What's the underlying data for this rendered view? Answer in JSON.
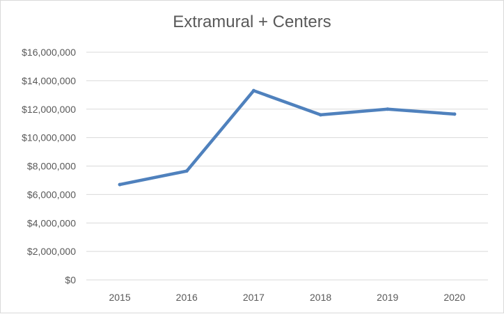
{
  "chart_data": {
    "type": "line",
    "title": "Extramural + Centers",
    "xlabel": "",
    "ylabel": "",
    "categories": [
      "2015",
      "2016",
      "2017",
      "2018",
      "2019",
      "2020"
    ],
    "series": [
      {
        "values": [
          6700000,
          7650000,
          13300000,
          11600000,
          12000000,
          11650000
        ]
      }
    ],
    "ylim": [
      0,
      16000000
    ],
    "yticks": [
      0,
      2000000,
      4000000,
      6000000,
      8000000,
      10000000,
      12000000,
      14000000,
      16000000
    ],
    "ytick_labels": [
      "$0",
      "$2,000,000",
      "$4,000,000",
      "$6,000,000",
      "$8,000,000",
      "$10,000,000",
      "$12,000,000",
      "$14,000,000",
      "$16,000,000"
    ],
    "grid": true,
    "legend": "none",
    "line_color": "#4f81bd",
    "grid_color": "#d9d9d9",
    "text_color": "#595959"
  }
}
